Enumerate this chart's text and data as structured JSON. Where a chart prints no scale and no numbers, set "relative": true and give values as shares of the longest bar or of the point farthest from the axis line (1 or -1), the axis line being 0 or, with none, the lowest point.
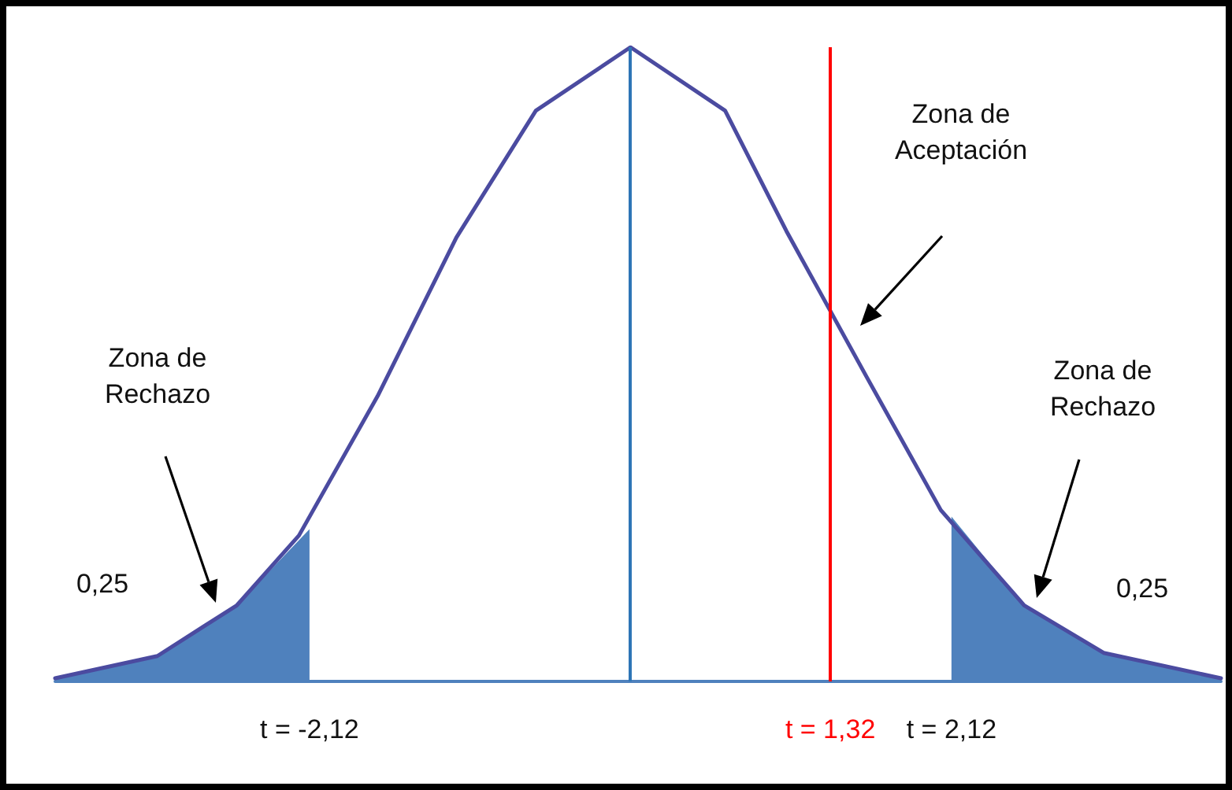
{
  "chart_data": {
    "type": "line",
    "relative": true,
    "marker": "none",
    "xlim": [
      -3.8,
      3.9
    ],
    "xticks": [
      {
        "value": -2.12,
        "label": "t = -2,12"
      },
      {
        "value": 1.32,
        "label": "t = 1,32"
      },
      {
        "value": 2.12,
        "label": "t = 2,12"
      }
    ],
    "series": [
      {
        "color": "#4b4ba0",
        "x": [
          -3.8,
          -3.125,
          -2.6,
          -2.19,
          -1.67,
          -1.15,
          -0.625,
          0,
          0.625,
          1.03,
          1.56,
          2.05,
          2.6,
          3.125,
          3.9
        ],
        "values": [
          0.005,
          0.04,
          0.12,
          0.23,
          0.45,
          0.7,
          0.9,
          1,
          0.9,
          0.71,
          0.48,
          0.27,
          0.12,
          0.045,
          0.005
        ]
      },
      {
        "type": "area",
        "color": "#4f81bd",
        "x": [
          -3.8,
          -3.125,
          -2.6,
          -2.12
        ],
        "values": [
          0.005,
          0.04,
          0.12,
          0.24
        ]
      },
      {
        "type": "area",
        "color": "#4f81bd",
        "x": [
          2.12,
          2.6,
          3.125,
          3.9
        ],
        "values": [
          0.26,
          0.12,
          0.045,
          0.005
        ]
      }
    ],
    "ref_lines": [
      {
        "axis": "x",
        "value": 0,
        "color": "#2e75b6"
      },
      {
        "axis": "x",
        "value": 1.32,
        "color": "#ff0000"
      }
    ],
    "annotations": [
      "Zona de\nRechazo",
      "Zona de\nAceptación",
      "Zona de\nRechazo",
      "0,25",
      "0,25"
    ]
  }
}
